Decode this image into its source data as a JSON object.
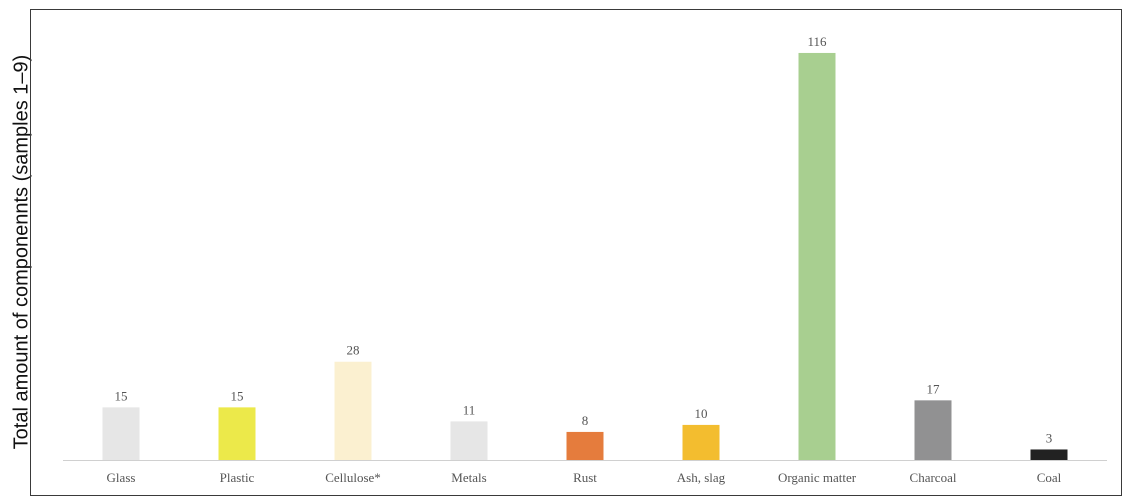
{
  "chart_data": {
    "type": "bar",
    "title": "",
    "xlabel": "",
    "ylabel": "Total amount of componennts (samples 1–9)",
    "ylim": [
      0,
      120
    ],
    "grid": false,
    "categories": [
      "Glass",
      "Plastic",
      "Cellulose*",
      "Metals",
      "Rust",
      "Ash, slag",
      "Organic matter",
      "Charcoal",
      "Coal"
    ],
    "values": [
      15,
      15,
      28,
      11,
      8,
      10,
      116,
      17,
      3
    ],
    "value_labels": [
      "15",
      "15",
      "28",
      "11",
      "8",
      "10",
      "116",
      "17",
      "3"
    ],
    "colors": [
      "#e6e6e6",
      "#ece94a",
      "#fbf0d0",
      "#e6e6e6",
      "#e57c3d",
      "#f3bd2f",
      "#a8cf90",
      "#919192",
      "#222222"
    ]
  }
}
